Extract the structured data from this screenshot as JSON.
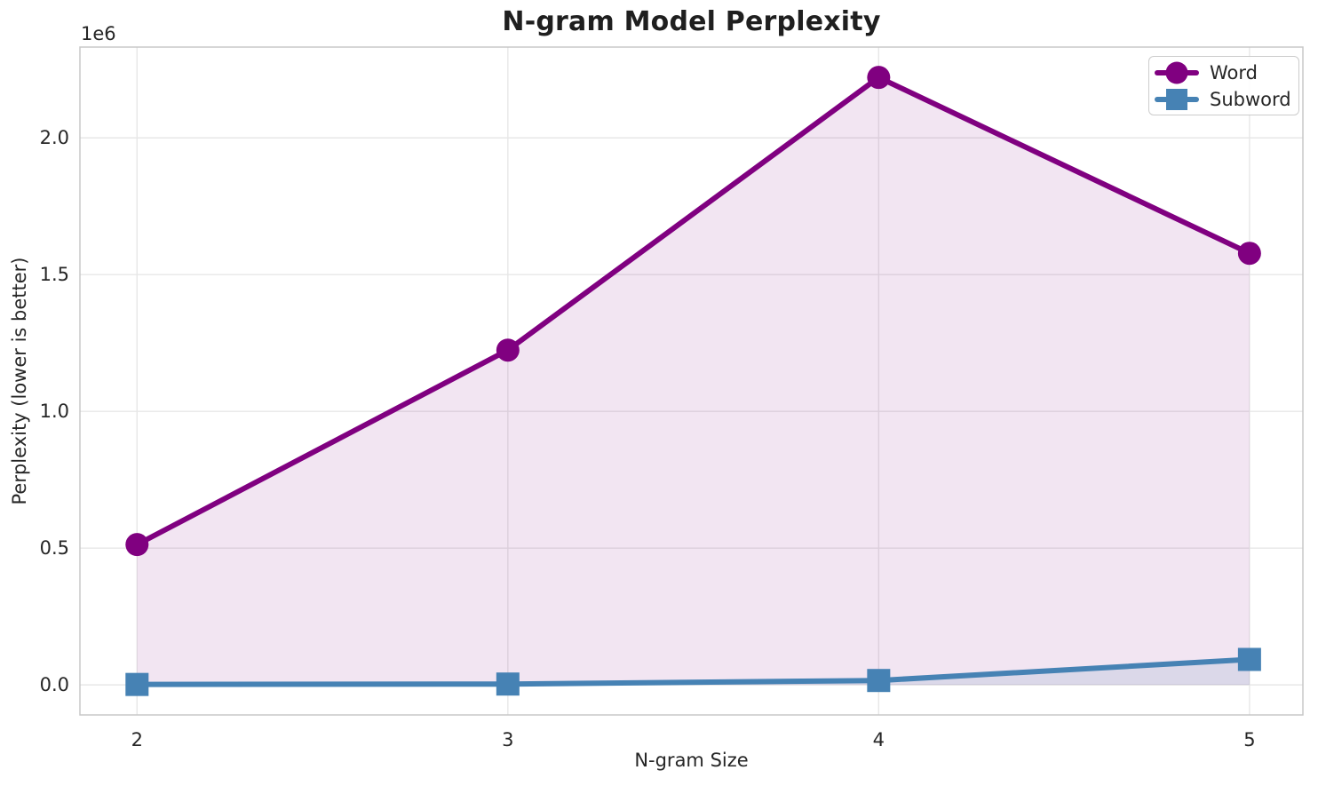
{
  "chart_data": {
    "type": "line",
    "title": "N-gram Model Perplexity",
    "xlabel": "N-gram Size",
    "ylabel": "Perplexity (lower is better)",
    "y_offset_text": "1e6",
    "x": [
      2,
      3,
      4,
      5
    ],
    "series": [
      {
        "name": "Word",
        "marker": "circle",
        "color": "#800080",
        "fill_alpha": 0.1,
        "values": [
          513000,
          1224000,
          2221000,
          1578000
        ]
      },
      {
        "name": "Subword",
        "marker": "square",
        "color": "#4682B4",
        "fill_alpha": 0.13,
        "values": [
          1500,
          3000,
          16000,
          93000
        ]
      }
    ],
    "fill_to_zero": true,
    "xlim": [
      1.846,
      5.144
    ],
    "ylim": [
      -110000,
      2332000
    ],
    "xticks": {
      "values": [
        2,
        3,
        4,
        5
      ],
      "labels": [
        "2",
        "3",
        "4",
        "5"
      ]
    },
    "yticks": {
      "values": [
        0,
        500000,
        1000000,
        1500000,
        2000000
      ],
      "labels": [
        "0.0",
        "0.5",
        "1.0",
        "1.5",
        "2.0"
      ]
    },
    "grid": true,
    "legend_position": "upper right"
  },
  "style": {
    "grid_color": "#e7e7e7",
    "spine_color": "#c8c8c8",
    "tick_text_color": "#262626",
    "background": "#ffffff",
    "line_width": 6,
    "marker_radius": 13,
    "square_size": 26
  }
}
